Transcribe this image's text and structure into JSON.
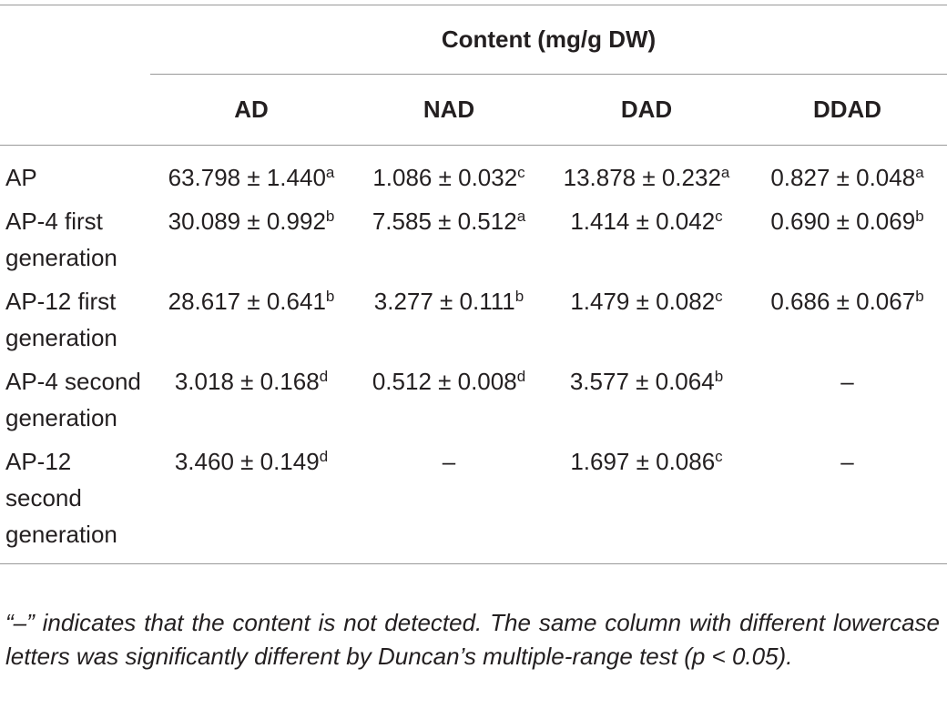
{
  "table": {
    "header": {
      "group": "Content (mg/g DW)",
      "columns": [
        "AD",
        "NAD",
        "DAD",
        "DDAD"
      ]
    },
    "rows": [
      {
        "label": "AP",
        "cells": [
          {
            "text": "63.798 ± 1.440",
            "sup": "a"
          },
          {
            "text": "1.086 ± 0.032",
            "sup": "c"
          },
          {
            "text": "13.878 ± 0.232",
            "sup": "a"
          },
          {
            "text": "0.827 ± 0.048",
            "sup": "a"
          }
        ]
      },
      {
        "label": "AP-4 first generation",
        "cells": [
          {
            "text": "30.089 ± 0.992",
            "sup": "b"
          },
          {
            "text": "7.585 ± 0.512",
            "sup": "a"
          },
          {
            "text": "1.414 ± 0.042",
            "sup": "c"
          },
          {
            "text": "0.690 ± 0.069",
            "sup": "b"
          }
        ]
      },
      {
        "label": "AP-12 first generation",
        "cells": [
          {
            "text": "28.617 ± 0.641",
            "sup": "b"
          },
          {
            "text": "3.277 ± 0.111",
            "sup": "b"
          },
          {
            "text": "1.479 ± 0.082",
            "sup": "c"
          },
          {
            "text": "0.686 ± 0.067",
            "sup": "b"
          }
        ]
      },
      {
        "label": "AP-4 second generation",
        "cells": [
          {
            "text": "3.018 ± 0.168",
            "sup": "d"
          },
          {
            "text": "0.512 ± 0.008",
            "sup": "d"
          },
          {
            "text": "3.577 ± 0.064",
            "sup": "b"
          },
          {
            "text": "–"
          }
        ]
      },
      {
        "label": "AP-12 second generation",
        "cells": [
          {
            "text": "3.460 ± 0.149",
            "sup": "d"
          },
          {
            "text": "–"
          },
          {
            "text": "1.697 ± 0.086",
            "sup": "c"
          },
          {
            "text": "–"
          }
        ]
      }
    ],
    "footnote": "“–” indicates that the content is not detected. The same column with different lowercase letters was significantly different by Duncan’s multiple-range test (p < 0.05)."
  }
}
